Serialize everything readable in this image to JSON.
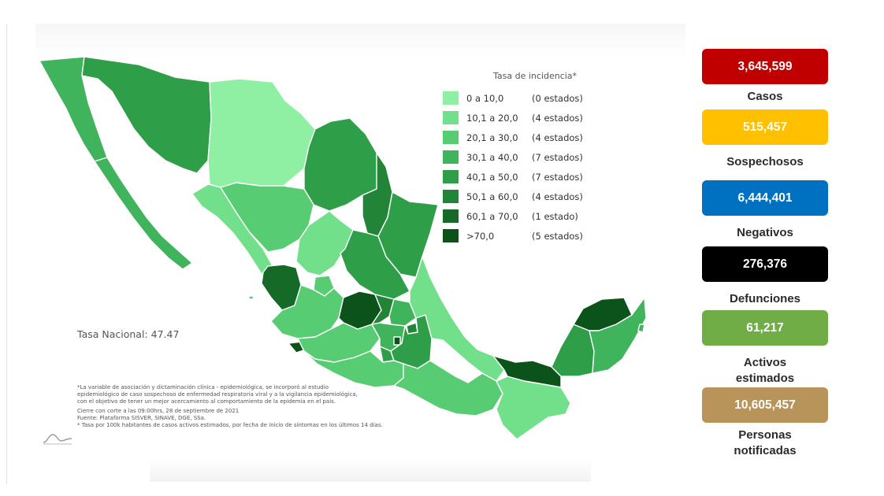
{
  "map": {
    "legend_title": "Tasa de incidencia*",
    "legend": [
      {
        "range": "0  a  10,0",
        "count": "(0 estados)",
        "color": "#8ff0a4"
      },
      {
        "range": "10,1  a  20,0",
        "count": "(4 estados)",
        "color": "#72e08a"
      },
      {
        "range": "20,1  a  30,0",
        "count": "(4 estados)",
        "color": "#57cc72"
      },
      {
        "range": "30,1  a  40,0",
        "count": "(7 estados)",
        "color": "#40b45c"
      },
      {
        "range": "40,1  a  50,0",
        "count": "(7 estados)",
        "color": "#2f9e48"
      },
      {
        "range": "50,1  a  60,0",
        "count": "(4 estados)",
        "color": "#218437"
      },
      {
        "range": "60,1  a  70,0",
        "count": "(1 estado)",
        "color": "#156a28"
      },
      {
        "range": ">70,0",
        "count": "(5 estados)",
        "color": "#0b521b"
      }
    ],
    "tasa_nacional": "Tasa Nacional: 47.47",
    "footnote": [
      "*La variable de asociación y dictaminación clínica - epidemiológica, se incorporó al estudio",
      "epidemiológico de caso sospechoso de enfermedad respiratoria viral y a la vigilancia epidemiológica,",
      "con el objetivo de tener un mejor acercamiento al comportamiento de la epidemia en el país.",
      "Cierre con corte a las 09:00hrs, 28 de septiembre de 2021",
      "Fuente: Plataforma SISVER, SINAVE, DGE, SSa.",
      "* Tasa por 100k habitantes de casos activos estimados, por fecha de inicio de síntomas en los últimos 14 días."
    ]
  },
  "stats": [
    {
      "value": "3,645,599",
      "label": "Casos",
      "color": "#c00000"
    },
    {
      "value": "515,457",
      "label": "Sospechosos",
      "color": "#ffc000"
    },
    {
      "value": "6,444,401",
      "label": "Negativos",
      "color": "#0070c0"
    },
    {
      "value": "276,376",
      "label": "Defunciones",
      "color": "#000000"
    },
    {
      "value": "61,217",
      "label": "Activos estimados",
      "color": "#70ad47"
    },
    {
      "value": "10,605,457",
      "label": "Personas notificadas",
      "color": "#b8945a"
    }
  ]
}
